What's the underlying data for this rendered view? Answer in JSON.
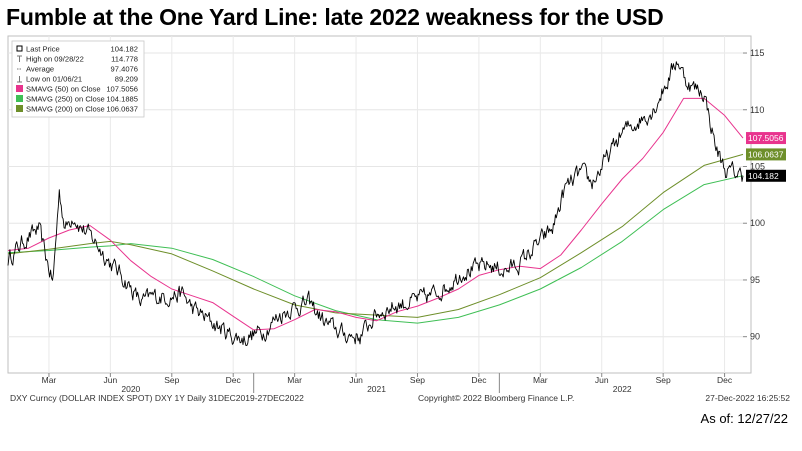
{
  "title": "Fumble at the One Yard Line: late 2022 weakness for the USD",
  "as_of": "As of: 12/27/22",
  "footer": {
    "left": "DXY Curncy (DOLLAR INDEX SPOT) DXY 1Y  Daily 31DEC2019-27DEC2022",
    "center": "Copyright© 2022 Bloomberg Finance L.P.",
    "right": "27-Dec-2022 16:25:52"
  },
  "colors": {
    "price": "#000000",
    "sma50": "#e8348e",
    "sma250": "#3fbf55",
    "sma200": "#6e8f2a"
  },
  "legend": [
    {
      "key": "last",
      "label": "Last Price",
      "value": "104.182",
      "color": "#000000",
      "icon": "square-marker-icon"
    },
    {
      "key": "high",
      "label": "High on 09/28/22",
      "value": "114.778",
      "color": "#888888",
      "icon": "high-marker-icon"
    },
    {
      "key": "avg",
      "label": "Average",
      "value": "97.4076",
      "color": "#888888",
      "icon": "average-marker-icon"
    },
    {
      "key": "low",
      "label": "Low on 01/06/21",
      "value": "89.209",
      "color": "#888888",
      "icon": "low-marker-icon"
    },
    {
      "key": "sma50",
      "label": "SMAVG (50)  on Close",
      "value": "107.5056",
      "color": "#e8348e",
      "icon": "swatch"
    },
    {
      "key": "sma250",
      "label": "SMAVG (250)  on Close",
      "value": "104.1885",
      "color": "#3fbf55",
      "icon": "swatch"
    },
    {
      "key": "sma200",
      "label": "SMAVG (200)  on Close",
      "value": "106.0637",
      "color": "#6e8f2a",
      "icon": "swatch"
    }
  ],
  "chart_data": {
    "type": "line",
    "title": "Fumble at the One Yard Line: late 2022 weakness for the USD",
    "ylabel": "",
    "xlabel": "",
    "ylim": [
      86.8,
      116.5
    ],
    "xlim": [
      0,
      35.9
    ],
    "x_unit": "months since Jan 1, 2020",
    "yticks": [
      90,
      95,
      100,
      105,
      110,
      115
    ],
    "month_ticks": [
      {
        "label": "Mar",
        "x": 2
      },
      {
        "label": "Jun",
        "x": 5
      },
      {
        "label": "Sep",
        "x": 8
      },
      {
        "label": "Dec",
        "x": 11
      },
      {
        "label": "Mar",
        "x": 14
      },
      {
        "label": "Jun",
        "x": 17
      },
      {
        "label": "Sep",
        "x": 20
      },
      {
        "label": "Dec",
        "x": 23
      },
      {
        "label": "Mar",
        "x": 26
      },
      {
        "label": "Jun",
        "x": 29
      },
      {
        "label": "Sep",
        "x": 32
      },
      {
        "label": "Dec",
        "x": 35
      }
    ],
    "year_labels": [
      {
        "label": "2020",
        "x": 6
      },
      {
        "label": "2021",
        "x": 18
      },
      {
        "label": "2022",
        "x": 30
      }
    ],
    "year_dividers": [
      12,
      24
    ],
    "series": [
      {
        "name": "Last Price",
        "key": "price",
        "x": [
          0,
          0.8,
          1.5,
          2.0,
          2.2,
          2.5,
          2.8,
          3.2,
          3.5,
          4.2,
          5.0,
          5.5,
          6.5,
          7.0,
          8.0,
          8.5,
          9.0,
          10.0,
          11.0,
          11.5,
          12.0,
          12.5,
          13.2,
          13.8,
          14.7,
          15.5,
          16.4,
          17.2,
          18.0,
          18.7,
          19.5,
          20.5,
          21.5,
          22.2,
          23.0,
          23.5,
          24.3,
          25.0,
          25.8,
          26.6,
          27.2,
          28.0,
          28.5,
          29.3,
          30.0,
          30.8,
          31.5,
          32.2,
          32.7,
          33.0,
          33.4,
          34.0,
          34.6,
          35.1,
          35.5,
          35.9
        ],
        "y": [
          96.8,
          98.5,
          99.5,
          96.0,
          94.8,
          102.8,
          99.5,
          100.8,
          99.8,
          98.5,
          96.5,
          95.5,
          93.0,
          93.5,
          93.6,
          93.8,
          92.5,
          91.2,
          90.0,
          89.8,
          90.2,
          90.5,
          91.8,
          92.5,
          93.0,
          91.2,
          90.2,
          90.0,
          92.0,
          92.6,
          93.0,
          93.5,
          94.5,
          95.8,
          96.0,
          96.3,
          95.8,
          96.5,
          98.0,
          99.5,
          103.0,
          104.5,
          103.5,
          105.8,
          108.0,
          109.0,
          110.0,
          112.5,
          114.5,
          113.0,
          112.0,
          111.5,
          106.5,
          104.5,
          104.5,
          104.182
        ]
      },
      {
        "name": "SMAVG (50) on Close",
        "key": "sma50",
        "x": [
          0,
          1,
          2,
          3,
          4,
          5,
          6,
          7,
          8,
          9,
          10,
          11,
          12,
          13,
          14,
          15,
          16,
          17,
          18,
          19,
          20,
          21,
          22,
          23,
          24,
          25,
          26,
          27,
          28,
          29,
          30,
          31,
          32,
          32.5,
          33,
          34,
          35,
          35.9
        ],
        "y": [
          97.6,
          97.8,
          98.7,
          99.4,
          99.8,
          98.5,
          96.7,
          95.3,
          94.2,
          93.6,
          93.0,
          91.8,
          90.6,
          90.7,
          91.5,
          92.4,
          92.2,
          91.7,
          91.4,
          92.2,
          92.7,
          93.4,
          94.2,
          95.4,
          95.9,
          96.2,
          96.0,
          97.2,
          99.4,
          101.7,
          103.9,
          105.7,
          108.0,
          109.5,
          111.0,
          111.0,
          109.5,
          107.5056
        ]
      },
      {
        "name": "SMAVG (250) on Close",
        "key": "sma250",
        "x": [
          0,
          2,
          4,
          5,
          6,
          8,
          10,
          12,
          14,
          16,
          18,
          20,
          22,
          24,
          26,
          28,
          30,
          32,
          34,
          35.9
        ],
        "y": [
          97.4,
          97.6,
          97.9,
          98.0,
          98.2,
          97.8,
          96.8,
          95.3,
          93.6,
          92.3,
          91.5,
          91.2,
          91.7,
          92.8,
          94.2,
          96.1,
          98.4,
          101.2,
          103.4,
          104.1885
        ]
      },
      {
        "name": "SMAVG (200) on Close",
        "key": "sma200",
        "x": [
          0,
          2,
          4,
          5,
          6,
          8,
          10,
          12,
          14,
          16,
          18,
          20,
          22,
          24,
          26,
          28,
          30,
          32,
          34,
          35.9
        ],
        "y": [
          97.3,
          97.7,
          98.2,
          98.4,
          98.1,
          97.3,
          95.8,
          94.2,
          92.8,
          92.1,
          91.9,
          91.7,
          92.4,
          93.7,
          95.2,
          97.4,
          99.7,
          102.7,
          105.1,
          106.0637
        ]
      }
    ],
    "end_labels": [
      {
        "key": "sma50",
        "value": "107.5056",
        "y": 107.5056
      },
      {
        "key": "sma200",
        "value": "106.0637",
        "y": 106.0637
      },
      {
        "key": "price",
        "value": "104.182",
        "y": 104.182
      }
    ]
  }
}
